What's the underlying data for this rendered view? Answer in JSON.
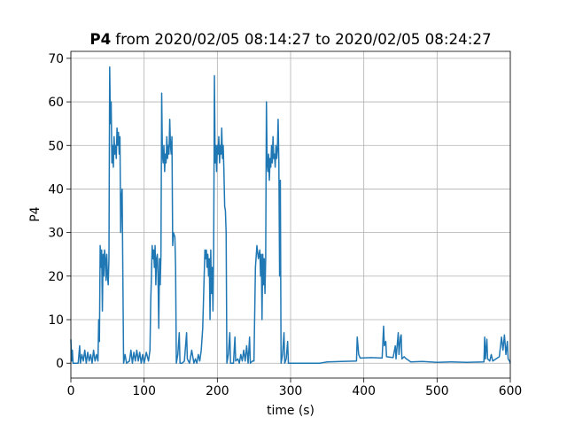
{
  "chart_data": {
    "type": "line",
    "title_bold": "P4",
    "title": "from 2020/02/05 08:14:27 to 2020/02/05 08:24:27",
    "x_label": "time (s)",
    "y_label": "P4",
    "color": "#1f77b4",
    "grid": true,
    "xlim": [
      0,
      600
    ],
    "xticks": [
      0,
      100,
      200,
      300,
      400,
      500,
      600
    ],
    "ylim": [
      -3.41,
      71.6
    ],
    "yticks": [
      0,
      10,
      20,
      30,
      40,
      50,
      60,
      70
    ],
    "x": [
      0,
      1,
      2,
      3,
      10,
      12,
      13,
      15,
      17,
      19,
      21,
      23,
      25,
      27,
      29,
      31,
      33,
      35,
      37,
      38,
      39,
      40,
      41,
      42,
      43,
      44,
      45,
      46,
      47,
      48,
      49,
      50,
      51,
      52,
      53,
      54,
      55,
      56,
      57,
      58,
      59,
      60,
      61,
      62,
      63,
      64,
      65,
      66,
      67,
      68,
      69,
      70,
      71,
      72,
      74,
      76,
      80,
      82,
      84,
      86,
      88,
      90,
      92,
      94,
      96,
      98,
      100,
      103,
      106,
      108,
      109,
      110,
      111,
      112,
      113,
      114,
      115,
      116,
      117,
      118,
      119,
      120,
      121,
      122,
      123,
      124,
      125,
      126,
      127,
      128,
      129,
      130,
      131,
      132,
      133,
      134,
      135,
      136,
      137,
      138,
      139,
      140,
      142,
      143,
      144,
      146,
      148,
      149,
      152,
      155,
      158,
      159,
      162,
      165,
      168,
      170,
      172,
      174,
      176,
      178,
      180,
      181,
      183,
      184,
      185,
      186,
      187,
      188,
      189,
      190,
      191,
      192,
      193,
      194,
      195,
      196,
      197,
      198,
      199,
      200,
      201,
      202,
      203,
      204,
      205,
      206,
      207,
      208,
      209,
      210,
      211,
      212,
      213,
      215,
      217,
      218,
      222,
      224,
      225,
      228,
      230,
      232,
      234,
      236,
      238,
      240,
      242,
      244,
      245,
      248,
      250,
      252,
      254,
      256,
      258,
      259,
      260,
      261,
      262,
      263,
      264,
      265,
      266,
      267,
      268,
      269,
      270,
      271,
      272,
      273,
      274,
      275,
      276,
      277,
      278,
      279,
      280,
      281,
      282,
      283,
      284,
      285,
      286,
      287,
      289,
      291,
      292,
      294,
      296,
      297,
      300,
      340,
      350,
      390,
      391,
      393,
      395,
      410,
      425,
      427,
      428,
      430,
      431,
      440,
      443,
      444,
      447,
      448,
      450,
      451,
      452,
      455,
      458,
      460,
      464,
      480,
      500,
      520,
      540,
      564,
      565,
      566,
      568,
      569,
      572,
      574,
      576,
      585,
      588,
      590,
      592,
      594,
      596,
      597,
      599,
      600
    ],
    "values": [
      5.5,
      0.5,
      3,
      0,
      0,
      4,
      0,
      2,
      0.5,
      3,
      0,
      2.5,
      0.5,
      2,
      0,
      3,
      0.5,
      2,
      0.5,
      10,
      5,
      27,
      22,
      26,
      12,
      25,
      20,
      26,
      24,
      19,
      25,
      20,
      18,
      24,
      68,
      55,
      60,
      46,
      50,
      45,
      52,
      48,
      50,
      47,
      54,
      50,
      53,
      48,
      52,
      30,
      38,
      40,
      20,
      0,
      2,
      0,
      0.5,
      3,
      0,
      2.5,
      0.5,
      3,
      0.5,
      2.5,
      0,
      2,
      0,
      2.5,
      0.5,
      3,
      14,
      20,
      27,
      24,
      26,
      22,
      27,
      18,
      24,
      25,
      20,
      8,
      24,
      18,
      25,
      62,
      48,
      46,
      50,
      44,
      48,
      46,
      52,
      47,
      50,
      48,
      56,
      50,
      48,
      52,
      27,
      30,
      29,
      22,
      0,
      2,
      7,
      0,
      0,
      0.5,
      7,
      1,
      0,
      3,
      0,
      1,
      0,
      2,
      0.5,
      3,
      8,
      14,
      26,
      24,
      26,
      22,
      25,
      20,
      24,
      10,
      26,
      16,
      22,
      12,
      26,
      66,
      46,
      50,
      44,
      50,
      48,
      52,
      46,
      50,
      48,
      54,
      47,
      50,
      44,
      36,
      35,
      30,
      0,
      2,
      7,
      0,
      0,
      6,
      0.5,
      1,
      0,
      2,
      0.5,
      3,
      0.5,
      4,
      0,
      6,
      0,
      0.5,
      0.5,
      22,
      27,
      24,
      26,
      20,
      25,
      10,
      25,
      18,
      24,
      16,
      24,
      60,
      46,
      44,
      48,
      42,
      47,
      45,
      50,
      46,
      52,
      47,
      48,
      45,
      50,
      47,
      49,
      56,
      46,
      20,
      42,
      0,
      2,
      7,
      0,
      1,
      5,
      0,
      0,
      0,
      0.3,
      0.5,
      6,
      2,
      1.2,
      1.3,
      1.2,
      8.5,
      4,
      5,
      1.5,
      1.3,
      4,
      1,
      7,
      2,
      6,
      6.5,
      1,
      1.5,
      1,
      0.8,
      0.3,
      0.4,
      0.2,
      0.3,
      0.2,
      0.3,
      6,
      1,
      5.5,
      1,
      0.5,
      2,
      0.5,
      1.5,
      6,
      3,
      6.5,
      2,
      5,
      1,
      0.5,
      0
    ]
  }
}
